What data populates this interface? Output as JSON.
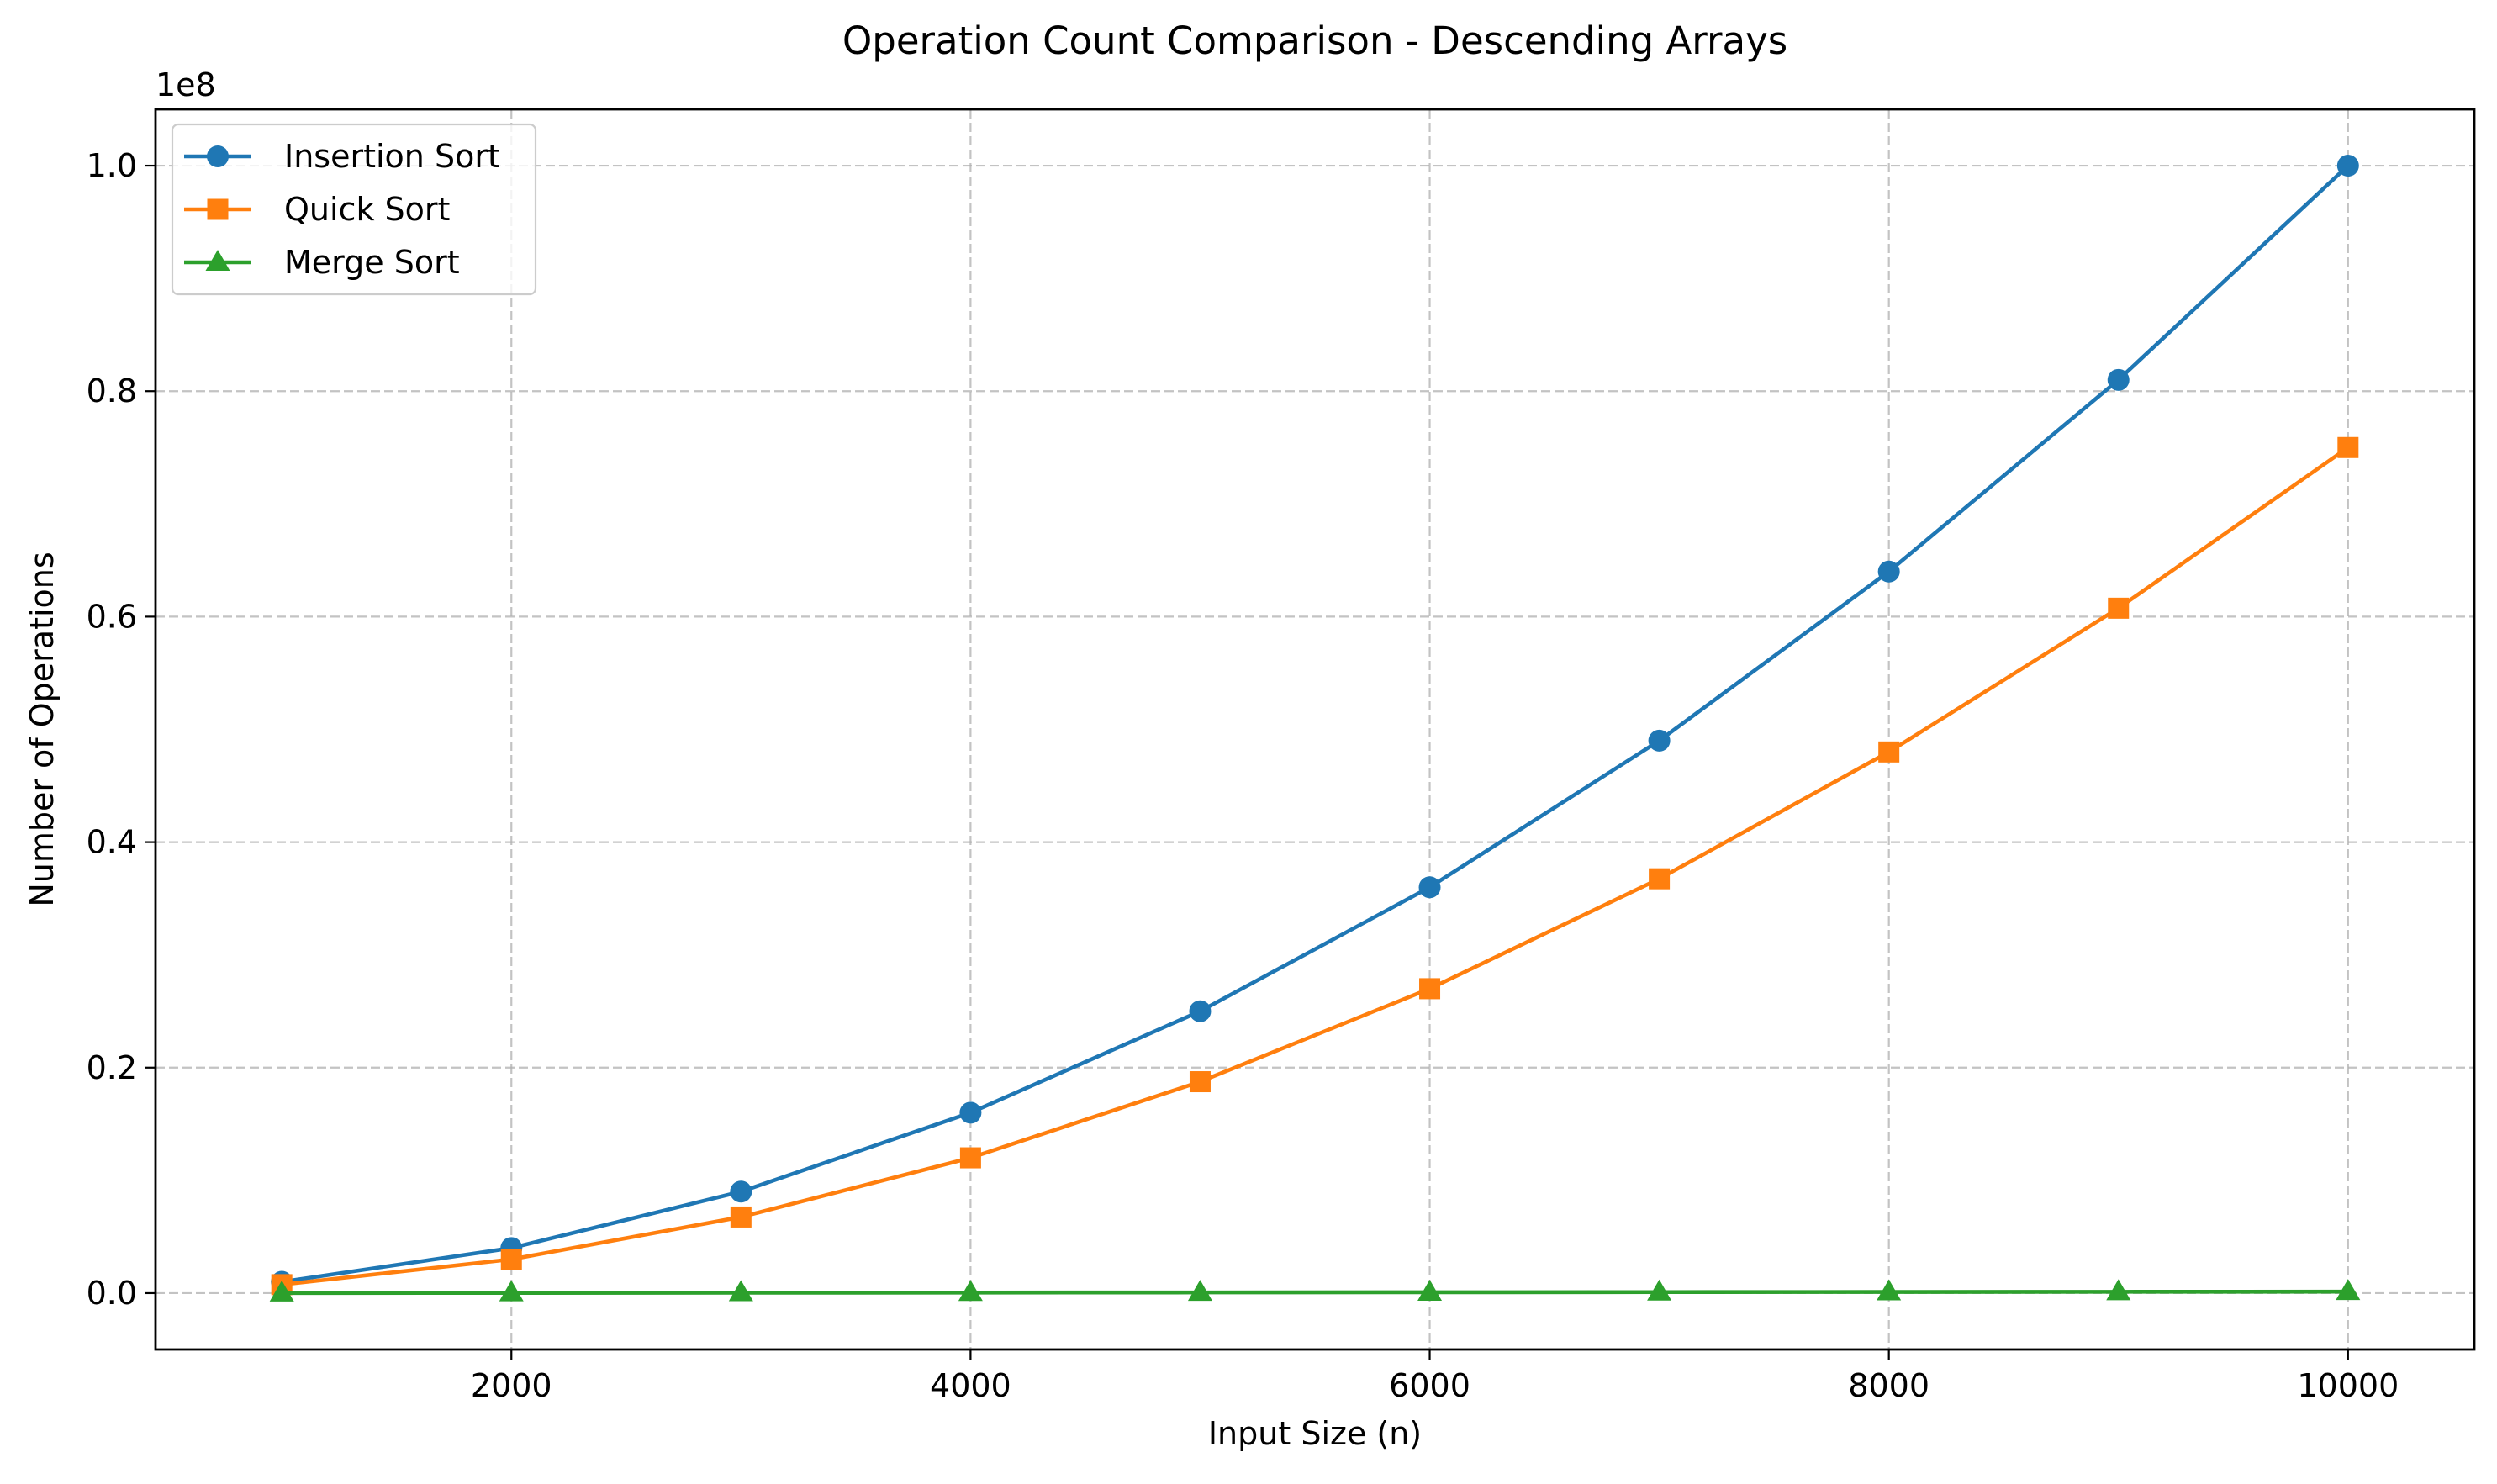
{
  "chart_data": {
    "type": "line",
    "title": "Operation Count Comparison - Descending Arrays",
    "xlabel": "Input Size (n)",
    "ylabel": "Number of Operations",
    "y_offset_label": "1e8",
    "y_scale_multiplier": 100000000,
    "xlim": [
      450,
      10550
    ],
    "ylim": [
      -5000000,
      105000000
    ],
    "x_ticks": [
      2000,
      4000,
      6000,
      8000,
      10000
    ],
    "x_tick_labels": [
      "2000",
      "4000",
      "6000",
      "8000",
      "10000"
    ],
    "y_ticks": [
      0,
      20000000,
      40000000,
      60000000,
      80000000,
      100000000
    ],
    "y_tick_labels": [
      "0.0",
      "0.2",
      "0.4",
      "0.6",
      "0.8",
      "1.0"
    ],
    "grid": true,
    "legend_position": "top-left",
    "x": [
      1000,
      2000,
      3000,
      4000,
      5000,
      6000,
      7000,
      8000,
      9000,
      10000
    ],
    "series": [
      {
        "name": "Insertion Sort",
        "color": "#1f77b4",
        "marker": "circle",
        "values": [
          1000000,
          4000000,
          9000000,
          16000000,
          25000000,
          36000000,
          49000000,
          64000000,
          81000000,
          100000000
        ]
      },
      {
        "name": "Quick Sort",
        "color": "#ff7f0e",
        "marker": "square",
        "values": [
          750000,
          3000000,
          6750000,
          12000000,
          18750000,
          27000000,
          36750000,
          48000000,
          60750000,
          75000000
        ]
      },
      {
        "name": "Merge Sort",
        "color": "#2ca02c",
        "marker": "triangle",
        "values": [
          10000,
          22000,
          35000,
          48000,
          61000,
          75000,
          90000,
          104000,
          118000,
          133000
        ]
      }
    ]
  }
}
